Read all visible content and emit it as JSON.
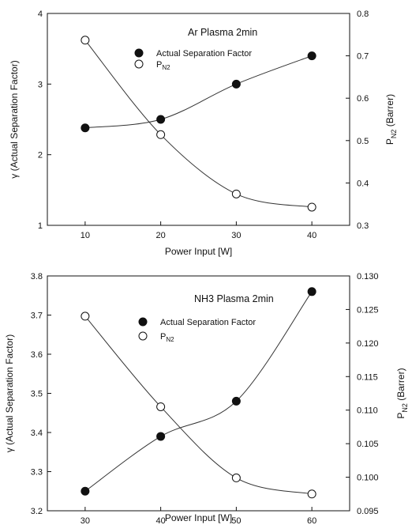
{
  "chart_data": [
    {
      "type": "line",
      "title": "Ar Plasma 2min",
      "xlabel": "Power Input [W]",
      "ylabel_left": "γ (Actual Separation Factor)",
      "ylabel_right_main": "P",
      "ylabel_right_sub": "N2",
      "ylabel_right_suffix": " (Barrer)",
      "xlim": [
        5,
        45
      ],
      "x_ticks": [
        10,
        20,
        30,
        40
      ],
      "x_tick_labels": [
        "10",
        "20",
        "30",
        "40"
      ],
      "ylim_left": [
        1,
        4
      ],
      "y_left_ticks": [
        1,
        2,
        3,
        4
      ],
      "y_left_tick_labels": [
        "1",
        "2",
        "3",
        "4"
      ],
      "ylim_right": [
        0.3,
        0.8
      ],
      "y_right_ticks": [
        0.3,
        0.4,
        0.5,
        0.6,
        0.7,
        0.8
      ],
      "y_right_tick_labels": [
        "0.3",
        "0.4",
        "0.5",
        "0.6",
        "0.7",
        "0.8"
      ],
      "grid": false,
      "legend_position": "top-center",
      "series": [
        {
          "name": "Actual Separation Factor",
          "axis": "left",
          "marker": "filled-circle",
          "x": [
            10,
            20,
            30,
            40
          ],
          "values": [
            2.38,
            2.5,
            3.0,
            3.4
          ]
        },
        {
          "name": "PN2",
          "name_main": "P",
          "name_sub": "N2",
          "axis": "right",
          "marker": "open-circle",
          "x": [
            10,
            20,
            30,
            40
          ],
          "values": [
            0.737,
            0.514,
            0.374,
            0.343
          ]
        }
      ]
    },
    {
      "type": "line",
      "title": "NH3 Plasma 2min",
      "xlabel": "Power Input [W]",
      "ylabel_left": "γ (Actual Separation Factor)",
      "ylabel_right_main": "P",
      "ylabel_right_sub": "N2",
      "ylabel_right_suffix": " (Barrer)",
      "xlim": [
        25,
        65
      ],
      "x_ticks": [
        30,
        40,
        50,
        60
      ],
      "x_tick_labels": [
        "30",
        "40",
        "50",
        "60"
      ],
      "ylim_left": [
        3.2,
        3.8
      ],
      "y_left_ticks": [
        3.2,
        3.3,
        3.4,
        3.5,
        3.6,
        3.7,
        3.8
      ],
      "y_left_tick_labels": [
        "3.2",
        "3.3",
        "3.4",
        "3.5",
        "3.6",
        "3.7",
        "3.8"
      ],
      "ylim_right": [
        0.095,
        0.13
      ],
      "y_right_ticks": [
        0.095,
        0.1,
        0.105,
        0.11,
        0.115,
        0.12,
        0.125,
        0.13
      ],
      "y_right_tick_labels": [
        "0.095",
        "0.100",
        "0.105",
        "0.110",
        "0.115",
        "0.120",
        "0.125",
        "0.130"
      ],
      "grid": false,
      "legend_position": "top-center",
      "series": [
        {
          "name": "Actual Separation Factor",
          "axis": "left",
          "marker": "filled-circle",
          "x": [
            30,
            40,
            50,
            60
          ],
          "values": [
            3.25,
            3.39,
            3.48,
            3.76
          ]
        },
        {
          "name": "PN2",
          "name_main": "P",
          "name_sub": "N2",
          "axis": "right",
          "marker": "open-circle",
          "x": [
            30,
            40,
            50,
            60
          ],
          "values": [
            0.124,
            0.1105,
            0.0999,
            0.0975
          ]
        }
      ]
    }
  ]
}
